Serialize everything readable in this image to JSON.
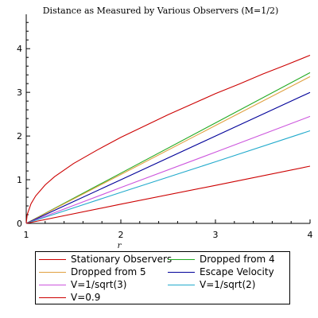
{
  "chart_data": {
    "type": "line",
    "title": "Distance as Measured by Various Observers (M=1/2)",
    "xlabel": "r",
    "ylabel": "",
    "xlim": [
      1,
      4
    ],
    "ylim": [
      0,
      4.75
    ],
    "x_ticks": [
      "1",
      "2",
      "3",
      "4"
    ],
    "y_ticks": [
      "0",
      "1",
      "2",
      "3",
      "4"
    ],
    "x_tick_values": [
      1,
      2,
      3,
      4
    ],
    "y_tick_values": [
      0,
      1,
      2,
      3,
      4
    ],
    "grid": false,
    "legend_position": "bottom",
    "series": [
      {
        "name": "Stationary Observers",
        "color": "#cc0000",
        "x": [
          1,
          1.01,
          1.05,
          1.1,
          1.2,
          1.3,
          1.5,
          1.75,
          2,
          2.25,
          2.5,
          2.75,
          3,
          3.25,
          3.5,
          3.75,
          4
        ],
        "y": [
          0,
          0.2,
          0.45,
          0.63,
          0.88,
          1.07,
          1.37,
          1.68,
          1.97,
          2.23,
          2.49,
          2.73,
          2.97,
          3.19,
          3.42,
          3.63,
          3.85
        ]
      },
      {
        "name": "Dropped from 4",
        "color": "#22aa22",
        "x": [
          1,
          2,
          3,
          4
        ],
        "y": [
          0,
          1.15,
          2.3,
          3.45
        ]
      },
      {
        "name": "Dropped from 5",
        "color": "#e0a040",
        "x": [
          1,
          2,
          3,
          4
        ],
        "y": [
          0,
          1.12,
          2.24,
          3.36
        ]
      },
      {
        "name": "Escape Velocity",
        "color": "#000099",
        "x": [
          1,
          2,
          3,
          4
        ],
        "y": [
          0,
          1,
          2,
          3
        ]
      },
      {
        "name": "V=1/sqrt(3)",
        "color": "#cc55dd",
        "x": [
          1,
          2,
          3,
          4
        ],
        "y": [
          0,
          0.82,
          1.63,
          2.45
        ]
      },
      {
        "name": "V=1/sqrt(2)",
        "color": "#22aacc",
        "x": [
          1,
          2,
          3,
          4
        ],
        "y": [
          0,
          0.71,
          1.41,
          2.12
        ]
      },
      {
        "name": "V=0.9",
        "color": "#cc0000",
        "x": [
          1,
          2,
          3,
          4
        ],
        "y": [
          0,
          0.44,
          0.87,
          1.31
        ]
      }
    ]
  }
}
